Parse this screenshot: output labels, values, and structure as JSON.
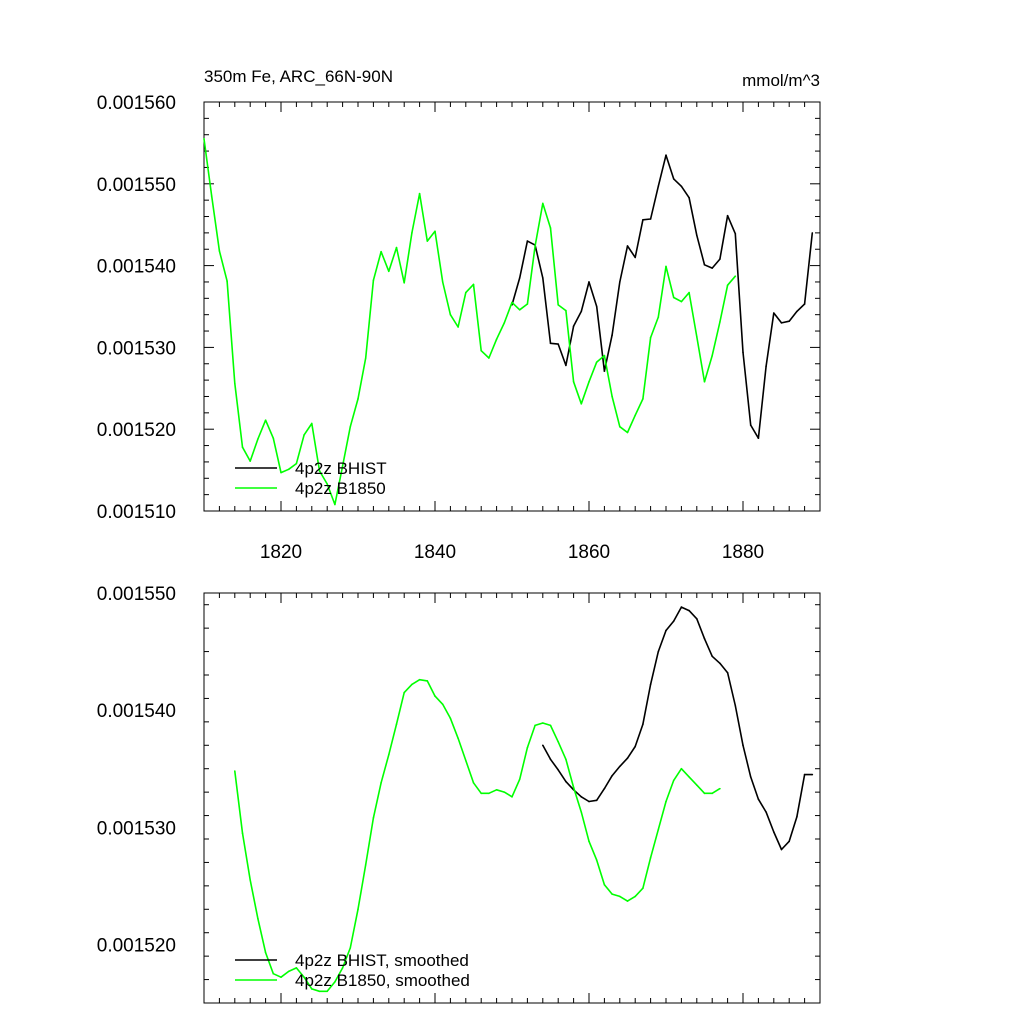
{
  "colors": {
    "bhist": "#000000",
    "b1850": "#00ff00",
    "axis": "#000000"
  },
  "chart_data": [
    {
      "type": "line",
      "title": "350m Fe, ARC_66N-90N",
      "units": "mmol/m^3",
      "xlim": [
        1810,
        1890
      ],
      "ylim": [
        0.00151,
        0.00156
      ],
      "x_ticks": [
        "1820",
        "1840",
        "1860",
        "1880"
      ],
      "y_ticks": [
        "0.001510",
        "0.001520",
        "0.001530",
        "0.001540",
        "0.001550",
        "0.001560"
      ],
      "grid": false,
      "legend": "bottom-left",
      "series": [
        {
          "name": "4p2z BHIST",
          "color": "#000000",
          "x": [
            1850,
            1851,
            1852,
            1853,
            1854,
            1855,
            1856,
            1857,
            1858,
            1859,
            1860,
            1861,
            1862,
            1863,
            1864,
            1865,
            1866,
            1867,
            1868,
            1869,
            1870,
            1871,
            1872,
            1873,
            1874,
            1875,
            1876,
            1877,
            1878,
            1879,
            1880,
            1881,
            1882,
            1883,
            1884,
            1885,
            1886,
            1887,
            1888,
            1889
          ],
          "y": [
            0.0015352,
            0.0015385,
            0.001543,
            0.0015425,
            0.0015385,
            0.0015305,
            0.0015304,
            0.0015278,
            0.0015326,
            0.0015344,
            0.001538,
            0.001535,
            0.0015271,
            0.0015315,
            0.001538,
            0.0015424,
            0.001541,
            0.0015456,
            0.0015457,
            0.0015497,
            0.0015535,
            0.0015506,
            0.0015497,
            0.0015483,
            0.0015437,
            0.0015401,
            0.0015397,
            0.0015408,
            0.0015461,
            0.0015439,
            0.0015294,
            0.0015205,
            0.0015189,
            0.0015277,
            0.0015342,
            0.001533,
            0.0015332,
            0.0015344,
            0.0015353,
            0.001544
          ]
        },
        {
          "name": "4p2z B1850",
          "color": "#00ff00",
          "x": [
            1810,
            1811,
            1812,
            1813,
            1814,
            1815,
            1816,
            1817,
            1818,
            1819,
            1820,
            1821,
            1822,
            1823,
            1824,
            1825,
            1826,
            1827,
            1828,
            1829,
            1830,
            1831,
            1832,
            1833,
            1834,
            1835,
            1836,
            1837,
            1838,
            1839,
            1840,
            1841,
            1842,
            1843,
            1844,
            1845,
            1846,
            1847,
            1848,
            1849,
            1850,
            1851,
            1852,
            1853,
            1854,
            1855,
            1856,
            1857,
            1858,
            1859,
            1860,
            1861,
            1862,
            1863,
            1864,
            1865,
            1866,
            1867,
            1868,
            1869,
            1870,
            1871,
            1872,
            1873,
            1874,
            1875,
            1876,
            1877,
            1878,
            1879
          ],
          "y": [
            0.0015555,
            0.0015485,
            0.0015418,
            0.0015381,
            0.0015256,
            0.0015178,
            0.0015161,
            0.0015188,
            0.0015211,
            0.0015189,
            0.0015147,
            0.0015151,
            0.0015158,
            0.0015193,
            0.0015207,
            0.0015149,
            0.0015133,
            0.0015108,
            0.0015155,
            0.0015203,
            0.0015237,
            0.0015287,
            0.0015382,
            0.0015417,
            0.0015393,
            0.0015422,
            0.0015379,
            0.001544,
            0.0015488,
            0.001543,
            0.0015442,
            0.001538,
            0.001534,
            0.0015325,
            0.0015367,
            0.0015377,
            0.0015296,
            0.0015287,
            0.001531,
            0.001533,
            0.0015355,
            0.0015346,
            0.0015353,
            0.0015424,
            0.0015476,
            0.0015446,
            0.0015352,
            0.0015345,
            0.0015258,
            0.0015231,
            0.0015258,
            0.0015282,
            0.001529,
            0.001524,
            0.0015203,
            0.0015196,
            0.0015217,
            0.0015237,
            0.0015312,
            0.0015337,
            0.0015399,
            0.0015361,
            0.0015356,
            0.0015367,
            0.0015313,
            0.0015258,
            0.001529,
            0.0015331,
            0.0015376,
            0.0015387
          ]
        }
      ]
    },
    {
      "type": "line",
      "xlim": [
        1810,
        1890
      ],
      "ylim": [
        0.001515,
        0.00155
      ],
      "x_ticks": [],
      "y_ticks": [
        "0.001520",
        "0.001530",
        "0.001540",
        "0.001550"
      ],
      "grid": false,
      "legend": "bottom-left",
      "series": [
        {
          "name": "4p2z BHIST, smoothed",
          "color": "#000000",
          "x": [
            1854,
            1855,
            1856,
            1857,
            1858,
            1859,
            1860,
            1861,
            1862,
            1863,
            1864,
            1865,
            1866,
            1867,
            1868,
            1869,
            1870,
            1871,
            1872,
            1873,
            1874,
            1875,
            1876,
            1877,
            1878,
            1879,
            1880,
            1881,
            1882,
            1883,
            1884,
            1885,
            1886,
            1887,
            1888,
            1889
          ],
          "y": [
            0.001537,
            0.0015358,
            0.0015349,
            0.0015339,
            0.0015332,
            0.0015326,
            0.0015322,
            0.0015323,
            0.0015333,
            0.0015344,
            0.0015352,
            0.0015359,
            0.0015369,
            0.0015388,
            0.0015422,
            0.001545,
            0.0015468,
            0.0015476,
            0.0015488,
            0.0015485,
            0.0015478,
            0.0015461,
            0.0015446,
            0.001544,
            0.0015432,
            0.0015404,
            0.001537,
            0.0015343,
            0.0015324,
            0.0015313,
            0.0015296,
            0.0015281,
            0.0015288,
            0.0015309,
            0.0015345,
            0.0015345
          ]
        },
        {
          "name": "4p2z B1850, smoothed",
          "color": "#00ff00",
          "x": [
            1814,
            1815,
            1816,
            1817,
            1818,
            1819,
            1820,
            1821,
            1822,
            1823,
            1824,
            1825,
            1826,
            1827,
            1828,
            1829,
            1830,
            1831,
            1832,
            1833,
            1834,
            1835,
            1836,
            1837,
            1838,
            1839,
            1840,
            1841,
            1842,
            1843,
            1844,
            1845,
            1846,
            1847,
            1848,
            1849,
            1850,
            1851,
            1852,
            1853,
            1854,
            1855,
            1856,
            1857,
            1858,
            1859,
            1860,
            1861,
            1862,
            1863,
            1864,
            1865,
            1866,
            1867,
            1868,
            1869,
            1870,
            1871,
            1872,
            1873,
            1874,
            1875,
            1876,
            1877
          ],
          "y": [
            0.0015348,
            0.0015295,
            0.0015255,
            0.0015222,
            0.0015193,
            0.0015175,
            0.0015172,
            0.0015177,
            0.001518,
            0.0015172,
            0.0015162,
            0.001516,
            0.001516,
            0.0015168,
            0.001518,
            0.0015197,
            0.001523,
            0.0015268,
            0.0015308,
            0.0015338,
            0.0015362,
            0.0015388,
            0.0015415,
            0.0015422,
            0.0015426,
            0.0015425,
            0.0015412,
            0.0015405,
            0.0015393,
            0.0015376,
            0.0015357,
            0.0015338,
            0.0015329,
            0.0015329,
            0.0015332,
            0.001533,
            0.0015326,
            0.0015341,
            0.0015368,
            0.0015387,
            0.0015389,
            0.0015387,
            0.0015373,
            0.0015358,
            0.0015334,
            0.0015313,
            0.0015288,
            0.0015272,
            0.0015251,
            0.0015243,
            0.0015241,
            0.0015237,
            0.0015241,
            0.0015248,
            0.0015274,
            0.0015298,
            0.0015322,
            0.001534,
            0.001535,
            0.0015343,
            0.0015336,
            0.0015329,
            0.0015329,
            0.0015333
          ]
        }
      ]
    }
  ]
}
